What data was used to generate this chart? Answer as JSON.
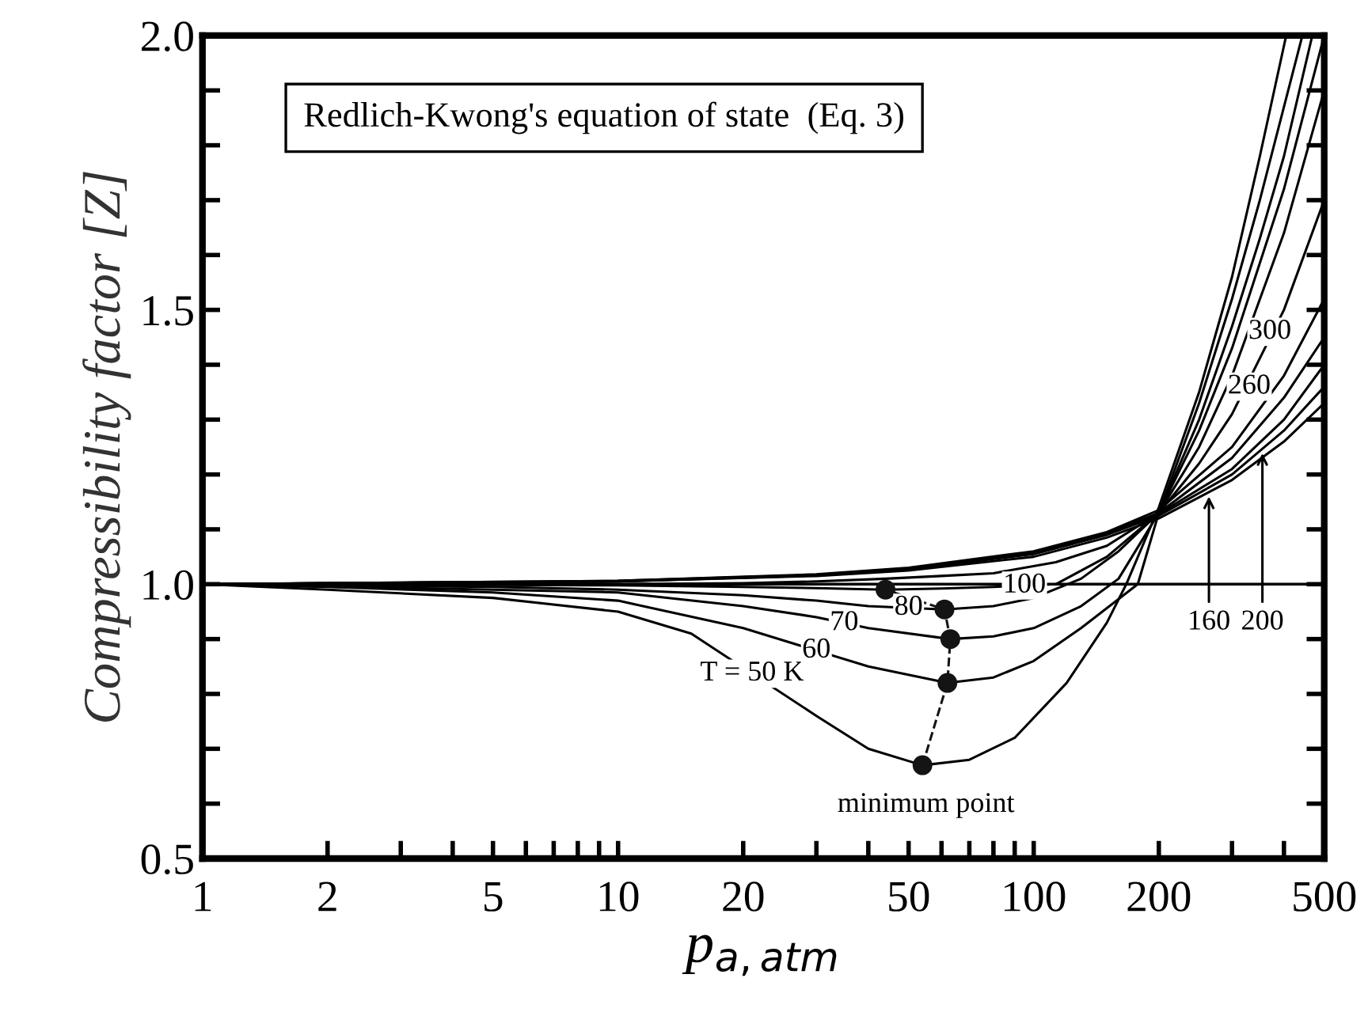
{
  "chart_data": {
    "type": "line",
    "title": "Redlich-Kwong's equation of state  (Eq. 3)",
    "xlabel": "p$_{a,atm}$",
    "ylabel": "Compressibility factor [Z]",
    "log": "x",
    "xlim": [
      1,
      500
    ],
    "ylim": [
      0.5,
      2.0
    ],
    "xticks": [
      1,
      2,
      {
        "value": 3,
        "label": null
      },
      {
        "value": 4,
        "label": null
      },
      5,
      {
        "value": 6,
        "label": null
      },
      {
        "value": 7,
        "label": null
      },
      {
        "value": 8,
        "label": null
      },
      {
        "value": 9,
        "label": null
      },
      10,
      20,
      {
        "value": 30,
        "label": null
      },
      {
        "value": 40,
        "label": null
      },
      50,
      {
        "value": 60,
        "label": null
      },
      {
        "value": 70,
        "label": null
      },
      {
        "value": 80,
        "label": null
      },
      {
        "value": 90,
        "label": null
      },
      100,
      200,
      {
        "value": 300,
        "label": null
      },
      {
        "value": 400,
        "label": null
      },
      500
    ],
    "yticks": [
      {
        "value": 0.5,
        "label": "0.5"
      },
      {
        "value": 0.6,
        "label": null
      },
      {
        "value": 0.7,
        "label": null
      },
      {
        "value": 0.8,
        "label": null
      },
      {
        "value": 0.9,
        "label": null
      },
      {
        "value": 1.0,
        "label": "1.0"
      },
      {
        "value": 1.1,
        "label": null
      },
      {
        "value": 1.2,
        "label": null
      },
      {
        "value": 1.3,
        "label": null
      },
      {
        "value": 1.4,
        "label": null
      },
      1.5,
      {
        "value": 1.6,
        "label": null
      },
      {
        "value": 1.7,
        "label": null
      },
      {
        "value": 1.8,
        "label": null
      },
      {
        "value": 1.9,
        "label": null
      },
      {
        "value": 2.0,
        "label": "2.0"
      }
    ],
    "grid": false,
    "legend": false,
    "line_style": "solid",
    "ref_lines": [
      {
        "axis": "y",
        "value": 1.0,
        "color": "#000000"
      }
    ],
    "series": [
      {
        "color": "#000000",
        "x": [
          1,
          2,
          5,
          10,
          15,
          30,
          40,
          54,
          70,
          90,
          120,
          150,
          167,
          200,
          250,
          300,
          350,
          405
        ],
        "values": [
          1.0,
          0.99,
          0.975,
          0.95,
          0.91,
          0.76,
          0.7,
          0.67,
          0.68,
          0.72,
          0.82,
          0.93,
          1.0,
          1.14,
          1.35,
          1.56,
          1.78,
          2.0
        ]
      },
      {
        "color": "#000000",
        "x": [
          1,
          2,
          5,
          10,
          20,
          40,
          62,
          80,
          100,
          130,
          178,
          200,
          250,
          300,
          350,
          443
        ],
        "values": [
          1.0,
          0.995,
          0.985,
          0.97,
          0.92,
          0.85,
          0.82,
          0.83,
          0.86,
          0.92,
          1.0,
          1.13,
          1.33,
          1.52,
          1.7,
          2.0
        ]
      },
      {
        "color": "#000000",
        "x": [
          1,
          5,
          10,
          20,
          30,
          40,
          63,
          80,
          100,
          130,
          160,
          200,
          250,
          300,
          350,
          400,
          468
        ],
        "values": [
          1.0,
          0.99,
          0.985,
          0.96,
          0.94,
          0.92,
          0.9,
          0.905,
          0.92,
          0.96,
          1.01,
          1.13,
          1.3,
          1.47,
          1.63,
          1.78,
          2.0
        ]
      },
      {
        "color": "#000000",
        "x": [
          1,
          5,
          10,
          20,
          30,
          40,
          61,
          80,
          100,
          130,
          160,
          200,
          250,
          300,
          400,
          500
        ],
        "values": [
          1.0,
          0.995,
          0.99,
          0.98,
          0.97,
          0.96,
          0.954,
          0.96,
          0.975,
          1.01,
          1.06,
          1.13,
          1.28,
          1.43,
          1.72,
          2.0
        ]
      },
      {
        "color": "#000000",
        "x": [
          1,
          10,
          20,
          30,
          44,
          60,
          80,
          113,
          150,
          200,
          250,
          300,
          400,
          500
        ],
        "values": [
          1.0,
          0.998,
          0.995,
          0.993,
          0.99,
          0.992,
          0.995,
          1.0,
          1.05,
          1.13,
          1.25,
          1.38,
          1.64,
          1.9
        ]
      },
      {
        "color": "#000000",
        "x": [
          1,
          10,
          20,
          30,
          44,
          60,
          80,
          113,
          150,
          200,
          250,
          300,
          400,
          500
        ],
        "values": [
          1.0,
          1.0,
          1.002,
          1.005,
          1.01,
          1.015,
          1.02,
          1.04,
          1.07,
          1.13,
          1.22,
          1.31,
          1.5,
          1.7
        ]
      },
      {
        "color": "#000000",
        "x": [
          1,
          10,
          30,
          50,
          100,
          150,
          200,
          300,
          400,
          500
        ],
        "values": [
          1.0,
          1.006,
          1.018,
          1.03,
          1.06,
          1.095,
          1.135,
          1.25,
          1.38,
          1.52
        ]
      },
      {
        "color": "#000000",
        "x": [
          1,
          10,
          30,
          50,
          100,
          150,
          200,
          300,
          400,
          500
        ],
        "values": [
          1.0,
          1.006,
          1.017,
          1.029,
          1.058,
          1.093,
          1.13,
          1.23,
          1.34,
          1.45
        ]
      },
      {
        "color": "#000000",
        "x": [
          1,
          10,
          30,
          50,
          100,
          150,
          200,
          300,
          400,
          500
        ],
        "values": [
          1.0,
          1.005,
          1.017,
          1.028,
          1.056,
          1.091,
          1.128,
          1.21,
          1.3,
          1.4
        ]
      },
      {
        "color": "#000000",
        "x": [
          1,
          10,
          30,
          50,
          100,
          150,
          200,
          300,
          400,
          500
        ],
        "values": [
          1.0,
          1.005,
          1.016,
          1.027,
          1.055,
          1.09,
          1.125,
          1.2,
          1.28,
          1.36
        ]
      },
      {
        "color": "#000000",
        "x": [
          1,
          10,
          30,
          50,
          100,
          150,
          200,
          300,
          400,
          500
        ],
        "values": [
          1.0,
          1.005,
          1.015,
          1.025,
          1.05,
          1.085,
          1.12,
          1.19,
          1.26,
          1.33
        ]
      },
      {
        "color": "#141414",
        "x": [
          54,
          62,
          63,
          61,
          44
        ],
        "values": [
          0.67,
          0.82,
          0.9,
          0.954,
          0.99
        ],
        "marker": "circle",
        "line_style": "dashed"
      }
    ],
    "annotations": [
      {
        "text": "T = 50 K",
        "x": 21,
        "y": 0.837
      },
      {
        "text": "60",
        "x": 30,
        "y": 0.879
      },
      {
        "text": "70",
        "x": 35,
        "y": 0.929
      },
      {
        "text": "80",
        "x": 50,
        "y": 0.957
      },
      {
        "text": "100",
        "x": 95,
        "y": 0.9975
      },
      {
        "text": "160",
        "x": 264,
        "y": 0.93
      },
      {
        "text": "200",
        "x": 355,
        "y": 0.93
      },
      {
        "text": "260",
        "x": 330,
        "y": 1.36
      },
      {
        "text": "300",
        "x": 370,
        "y": 1.46
      },
      "minimum point"
    ]
  }
}
